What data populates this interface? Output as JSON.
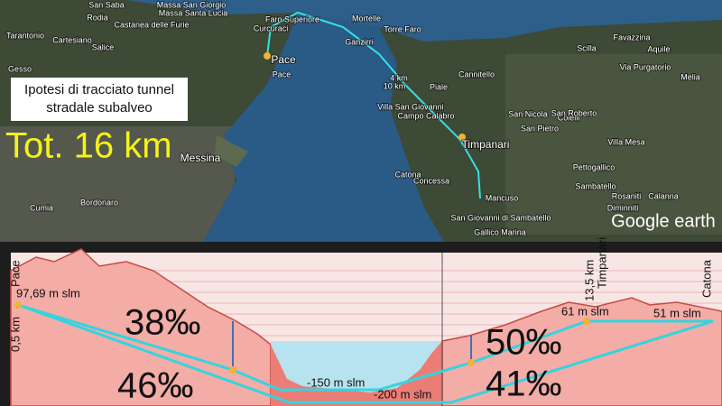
{
  "map": {
    "caption": [
      "Ipotesi di tracciato tunnel",
      "stradale subalveo"
    ],
    "total": "Tot. 16 km",
    "route_marks": [
      "4 km",
      "10 km"
    ],
    "brand": "Google earth",
    "main_places": [
      "Pace",
      "Timpanari",
      "Messina"
    ],
    "places": [
      "San Saba",
      "Massa San Giorgio",
      "Massa Santa Lucia",
      "Rodia",
      "Faro Superiore",
      "Curcuraci",
      "Castanea delle Furie",
      "Mortelle",
      "Torre Faro",
      "Ganzirri",
      "Tarantonio",
      "Cartesiano",
      "Salice",
      "Gesso",
      "Pace",
      "Cannitello",
      "Piale",
      "Villa San Giovanni",
      "Campo Calabro",
      "San Nicola",
      "Colelli",
      "San Roberto",
      "San Pietro",
      "Concessa",
      "Catona",
      "Villa Mesa",
      "Pettogallico",
      "Sambatello",
      "Rosaniti",
      "Calanna",
      "Mancuso",
      "Diminniti",
      "San Giovanni di Sambatello",
      "Gallico Marina",
      "Cumia",
      "Bordonaro",
      "Scilla",
      "Favazzina",
      "Aquile",
      "Melia",
      "Via Purgatorio"
    ]
  },
  "profile": {
    "start_name": "Pace",
    "start_distance": "0,5 km",
    "start_elevation": "97,69 m slm",
    "grade_upper_left": "38‰",
    "grade_lower_left": "46‰",
    "depth_upper": "-150 m slm",
    "depth_lower": "-200 m slm",
    "grade_upper_right": "50‰",
    "grade_lower_right": "41‰",
    "mid_elevation": "61 m slm",
    "end_elevation": "51 m slm",
    "mid_distance": "13,5 km",
    "mid_name": "Timpanari",
    "end_name": "Catona"
  }
}
